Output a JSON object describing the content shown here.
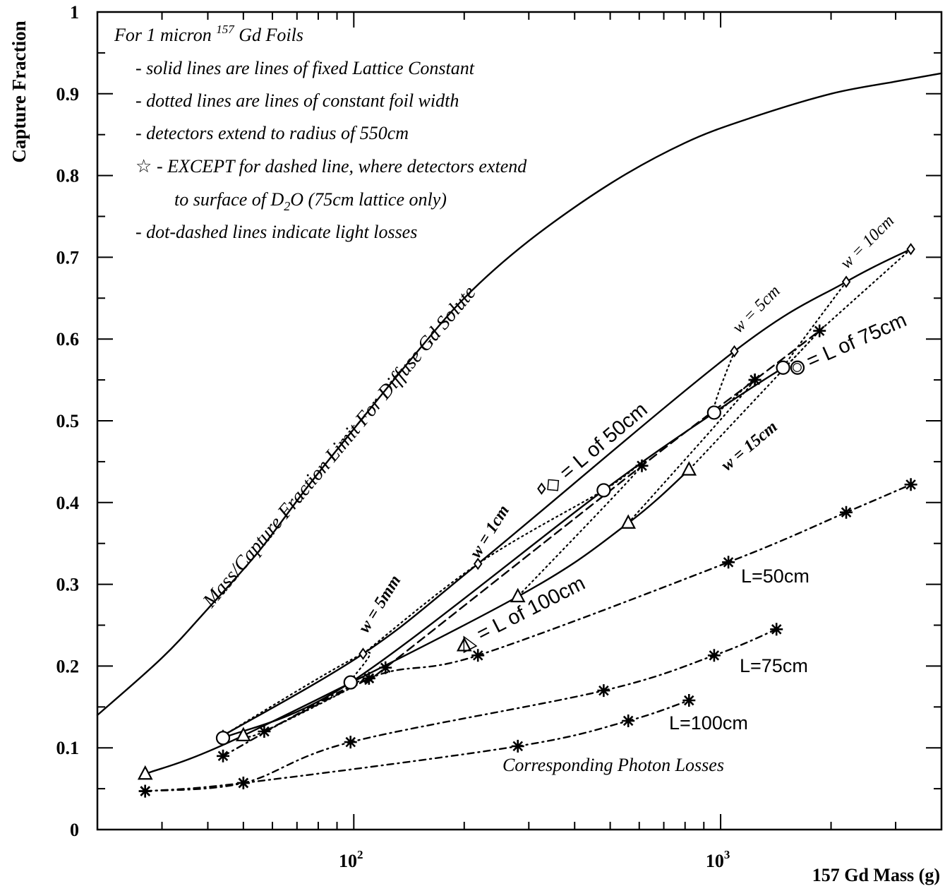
{
  "chart_data": {
    "type": "line",
    "ylabel": "Capture Fraction",
    "xlabel": "157 Gd Mass (g)",
    "xscale": "log",
    "xlim": [
      20,
      4000
    ],
    "ylim": [
      0,
      1
    ],
    "yticks": [
      "0",
      "0.1",
      "0.2",
      "0.3",
      "0.4",
      "0.5",
      "0.6",
      "0.7",
      "0.8",
      "0.9",
      "1"
    ],
    "xticks": [
      {
        "base": "10",
        "exp": "2"
      },
      {
        "base": "10",
        "exp": "3"
      }
    ],
    "notes": {
      "header_prefix": "For 1 micron ",
      "header_sup": "157",
      "header_suffix": " Gd Foils",
      "line1": "- solid lines are lines of fixed Lattice Constant",
      "line2": "- dotted lines are lines of constant foil width",
      "line3": "- detectors extend to radius of 550cm",
      "line4_star": "☆",
      "line4": "- EXCEPT for dashed line, where detectors extend",
      "line5_prefix": "to surface of D",
      "line5_sub": "2",
      "line5_suffix": "O (75cm lattice only)",
      "line6": "- dot-dashed lines indicate light losses"
    },
    "annotations": {
      "limit": "Mass/Capture Fraction Limit For Diffuse Gd Solute",
      "w5mm": "w = 5mm",
      "w1cm": "w = 1cm",
      "w5cm": "w = 5cm",
      "w10cm": "w = 10cm",
      "w15cm": "w = 15cm",
      "L50": "◇ = L of 50cm",
      "L75": "○ = L of 75cm",
      "L100": "△ = L of 100cm",
      "loss50": "L=50cm",
      "loss75": "L=75cm",
      "loss100": "L=100cm",
      "losses": "Corresponding Photon Losses"
    },
    "series": [
      {
        "style": "solid",
        "marker": "none",
        "x": [
          20,
          30,
          40,
          55,
          75,
          100,
          140,
          200,
          300,
          500,
          800,
          1200,
          2000,
          3000,
          4000
        ],
        "y": [
          0.14,
          0.21,
          0.27,
          0.34,
          0.42,
          0.49,
          0.57,
          0.65,
          0.72,
          0.79,
          0.84,
          0.87,
          0.9,
          0.915,
          0.925
        ]
      },
      {
        "style": "solid",
        "marker": "diamond",
        "x": [
          44,
          106,
          218,
          1090,
          2200,
          3300
        ],
        "y": [
          0.115,
          0.215,
          0.325,
          0.585,
          0.67,
          0.71
        ]
      },
      {
        "style": "solid",
        "marker": "circle",
        "x": [
          44,
          98,
          480,
          960,
          1480
        ],
        "y": [
          0.112,
          0.18,
          0.415,
          0.51,
          0.565
        ]
      },
      {
        "style": "solid",
        "marker": "triangle",
        "x": [
          27,
          50,
          280,
          560,
          820
        ],
        "y": [
          0.068,
          0.115,
          0.285,
          0.375,
          0.44
        ]
      },
      {
        "style": "dashed",
        "marker": "star",
        "x": [
          57,
          110,
          122,
          610,
          1240,
          1860
        ],
        "y": [
          0.12,
          0.185,
          0.198,
          0.445,
          0.55,
          0.61
        ]
      },
      {
        "style": "dotted",
        "marker": "none",
        "x": [
          44,
          106,
          98,
          110,
          57,
          50
        ],
        "y": [
          0.115,
          0.215,
          0.18,
          0.185,
          0.12,
          0.115
        ]
      },
      {
        "style": "dotted",
        "marker": "none",
        "x": [
          106,
          218,
          480,
          610,
          280
        ],
        "y": [
          0.215,
          0.325,
          0.415,
          0.445,
          0.285
        ]
      },
      {
        "style": "dotted",
        "marker": "none",
        "x": [
          1090,
          960,
          1240,
          560
        ],
        "y": [
          0.585,
          0.51,
          0.55,
          0.375
        ]
      },
      {
        "style": "dotted",
        "marker": "none",
        "x": [
          2200,
          1480,
          1860,
          820
        ],
        "y": [
          0.67,
          0.565,
          0.61,
          0.44
        ]
      },
      {
        "style": "dotted",
        "marker": "none",
        "x": [
          3300,
          1860
        ],
        "y": [
          0.71,
          0.61
        ]
      },
      {
        "style": "dotdash",
        "marker": "asterisk",
        "x": [
          44,
          110,
          218,
          1050,
          2200,
          3300
        ],
        "y": [
          0.09,
          0.185,
          0.213,
          0.327,
          0.388,
          0.422
        ]
      },
      {
        "style": "dotdash",
        "marker": "asterisk",
        "x": [
          27,
          50,
          98,
          480,
          960,
          1420
        ],
        "y": [
          0.047,
          0.057,
          0.107,
          0.17,
          0.213,
          0.245
        ]
      },
      {
        "style": "dotdash",
        "marker": "asterisk",
        "x": [
          27,
          50,
          280,
          560,
          820
        ],
        "y": [
          0.047,
          0.057,
          0.102,
          0.133,
          0.158
        ]
      }
    ],
    "extra_markers": [
      {
        "marker": "triangle",
        "x": [
          200
        ],
        "y": [
          0.225
        ]
      },
      {
        "marker": "circle",
        "x": [
          1620
        ],
        "y": [
          0.565
        ]
      },
      {
        "marker": "diamond",
        "x": [
          325
        ],
        "y": [
          0.417
        ]
      },
      {
        "marker": "star",
        "x": [
          1240
        ],
        "y": [
          0.55
        ]
      }
    ]
  }
}
